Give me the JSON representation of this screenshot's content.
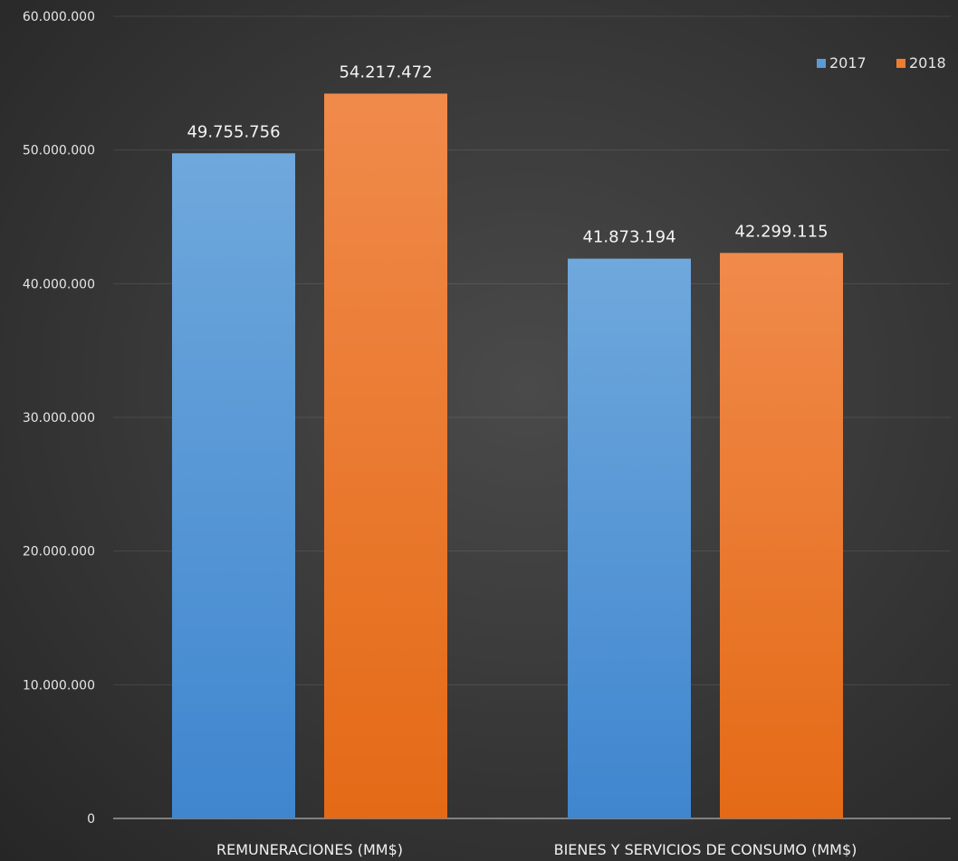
{
  "chart_data": {
    "type": "bar",
    "categories": [
      "REMUNERACIONES (MM$)",
      "BIENES Y SERVICIOS DE CONSUMO (MM$)"
    ],
    "series": [
      {
        "name": "2017",
        "values": [
          49755756,
          41873194
        ],
        "labels": [
          "49.755.756",
          "41.873.194"
        ],
        "color": "#5b9bd5"
      },
      {
        "name": "2018",
        "values": [
          54217472,
          42299115
        ],
        "labels": [
          "54.217.472",
          "42.299.115"
        ],
        "color": "#ed7d31"
      }
    ],
    "ylim": [
      0,
      60000000
    ],
    "yticks": [
      0,
      10000000,
      20000000,
      30000000,
      40000000,
      50000000,
      60000000
    ],
    "ytick_labels": [
      "0",
      "10.000.000",
      "20.000.000",
      "30.000.000",
      "40.000.000",
      "50.000.000",
      "60.000.000"
    ],
    "grid": true,
    "legend_position": "top-right"
  }
}
